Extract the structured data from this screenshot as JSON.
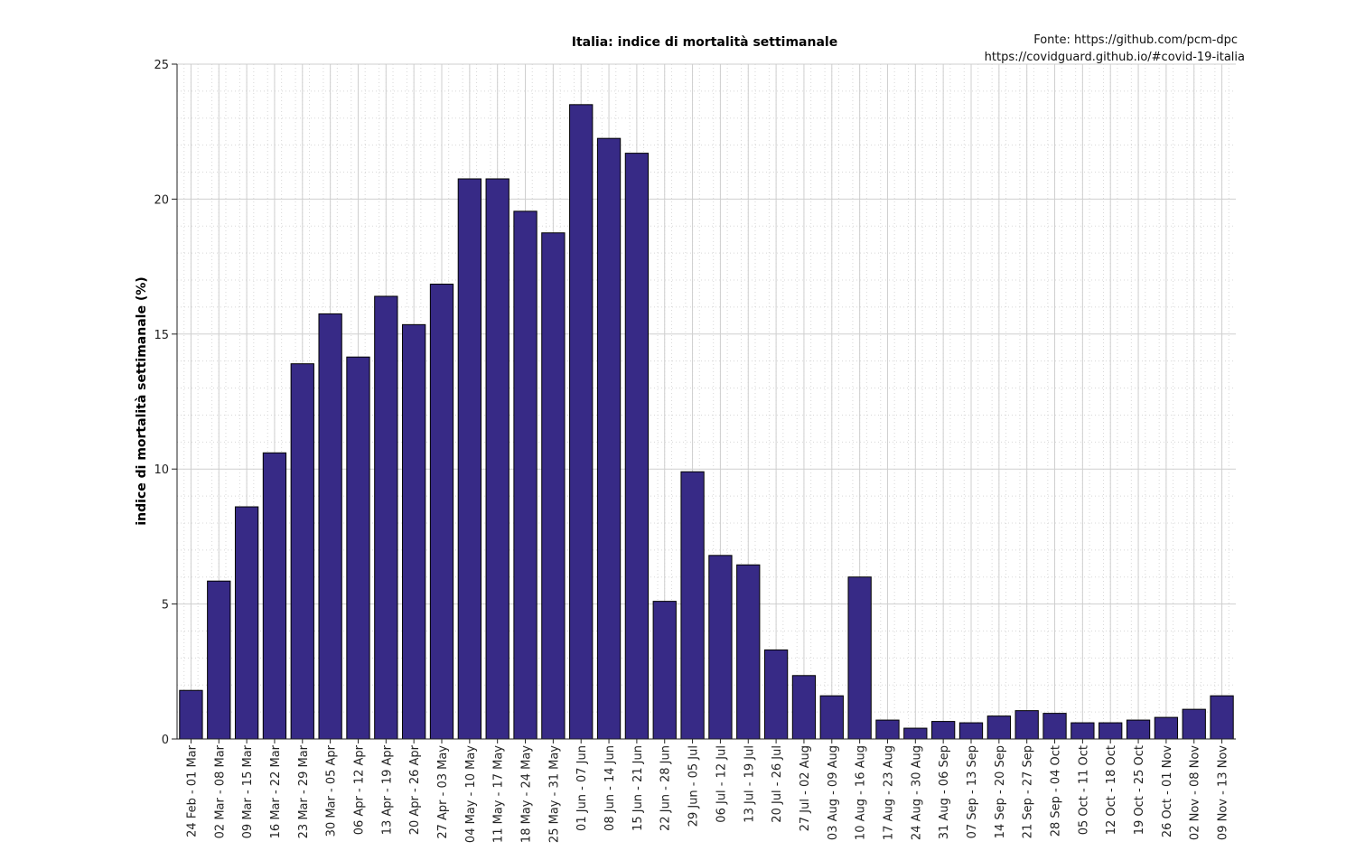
{
  "chart_data": {
    "type": "bar",
    "title": "Italia: indice di mortalità settimanale",
    "source_lines": [
      "Fonte: https://github.com/pcm-dpc",
      "https://covidguard.github.io/#covid-19-italia"
    ],
    "xlabel": "",
    "ylabel": "indice di mortalità settimanale (%)",
    "ylim": [
      0,
      25
    ],
    "yticks": [
      0,
      5,
      10,
      15,
      20,
      25
    ],
    "grid": true,
    "minor_grid": true,
    "bar_color": "#372a86",
    "bar_edge_color": "#000000",
    "categories": [
      "24 Feb - 01 Mar",
      "02 Mar - 08 Mar",
      "09 Mar - 15 Mar",
      "16 Mar - 22 Mar",
      "23 Mar - 29 Mar",
      "30 Mar - 05 Apr",
      "06 Apr - 12 Apr",
      "13 Apr - 19 Apr",
      "20 Apr - 26 Apr",
      "27 Apr - 03 May",
      "04 May - 10 May",
      "11 May - 17 May",
      "18 May - 24 May",
      "25 May - 31 May",
      "01 Jun - 07 Jun",
      "08 Jun - 14 Jun",
      "15 Jun - 21 Jun",
      "22 Jun - 28 Jun",
      "29 Jun - 05 Jul",
      "06 Jul - 12 Jul",
      "13 Jul - 19 Jul",
      "20 Jul - 26 Jul",
      "27 Jul - 02 Aug",
      "03 Aug - 09 Aug",
      "10 Aug - 16 Aug",
      "17 Aug - 23 Aug",
      "24 Aug - 30 Aug",
      "31 Aug - 06 Sep",
      "07 Sep - 13 Sep",
      "14 Sep - 20 Sep",
      "21 Sep - 27 Sep",
      "28 Sep - 04 Oct",
      "05 Oct - 11 Oct",
      "12 Oct - 18 Oct",
      "19 Oct - 25 Oct",
      "26 Oct - 01 Nov",
      "02 Nov - 08 Nov",
      "09 Nov - 13 Nov"
    ],
    "values": [
      1.8,
      5.85,
      8.6,
      10.6,
      13.9,
      15.75,
      14.15,
      16.4,
      15.35,
      16.85,
      20.75,
      20.75,
      19.55,
      18.75,
      23.5,
      22.25,
      21.7,
      5.1,
      9.9,
      6.8,
      6.45,
      3.3,
      2.35,
      1.6,
      6.0,
      0.7,
      0.4,
      0.65,
      0.6,
      0.85,
      1.05,
      0.95,
      0.6,
      0.6,
      0.7,
      0.8,
      1.1,
      1.6
    ]
  }
}
